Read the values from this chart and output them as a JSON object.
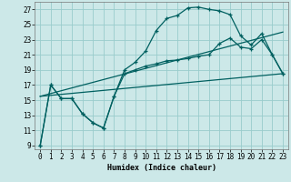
{
  "xlabel": "Humidex (Indice chaleur)",
  "bg_color": "#cce8e8",
  "grid_color": "#99cccc",
  "line_color": "#006060",
  "xlim": [
    -0.5,
    23.5
  ],
  "ylim": [
    8.5,
    28.0
  ],
  "xticks": [
    0,
    1,
    2,
    3,
    4,
    5,
    6,
    7,
    8,
    9,
    10,
    11,
    12,
    13,
    14,
    15,
    16,
    17,
    18,
    19,
    20,
    21,
    22,
    23
  ],
  "yticks": [
    9,
    11,
    13,
    15,
    17,
    19,
    21,
    23,
    25,
    27
  ],
  "upper_curve_x": [
    0,
    1,
    2,
    3,
    4,
    5,
    6,
    7,
    8,
    9,
    10,
    11,
    12,
    13,
    14,
    15,
    16,
    17,
    18,
    19,
    20,
    21,
    22,
    23
  ],
  "upper_curve_y": [
    9.0,
    17.0,
    15.2,
    15.2,
    13.2,
    12.0,
    11.3,
    15.5,
    19.0,
    20.0,
    21.5,
    24.2,
    25.8,
    26.2,
    27.2,
    27.3,
    27.0,
    26.8,
    26.3,
    23.5,
    22.3,
    23.8,
    21.0,
    18.5
  ],
  "lower_curve_x": [
    0,
    1,
    2,
    3,
    4,
    5,
    6,
    7,
    8,
    9,
    10,
    11,
    12,
    13,
    14,
    15,
    16,
    17,
    18,
    19,
    20,
    21,
    22,
    23
  ],
  "lower_curve_y": [
    9.0,
    17.0,
    15.2,
    15.2,
    13.2,
    12.0,
    11.3,
    15.5,
    18.5,
    19.0,
    19.5,
    19.8,
    20.2,
    20.3,
    20.5,
    20.8,
    21.0,
    22.5,
    23.2,
    22.0,
    21.8,
    23.0,
    21.0,
    18.5
  ],
  "ref_line1_x": [
    0,
    23
  ],
  "ref_line1_y": [
    15.5,
    24.0
  ],
  "ref_line2_x": [
    0,
    23
  ],
  "ref_line2_y": [
    15.5,
    18.5
  ],
  "xlabel_fontsize": 6.0,
  "tick_fontsize": 5.5
}
